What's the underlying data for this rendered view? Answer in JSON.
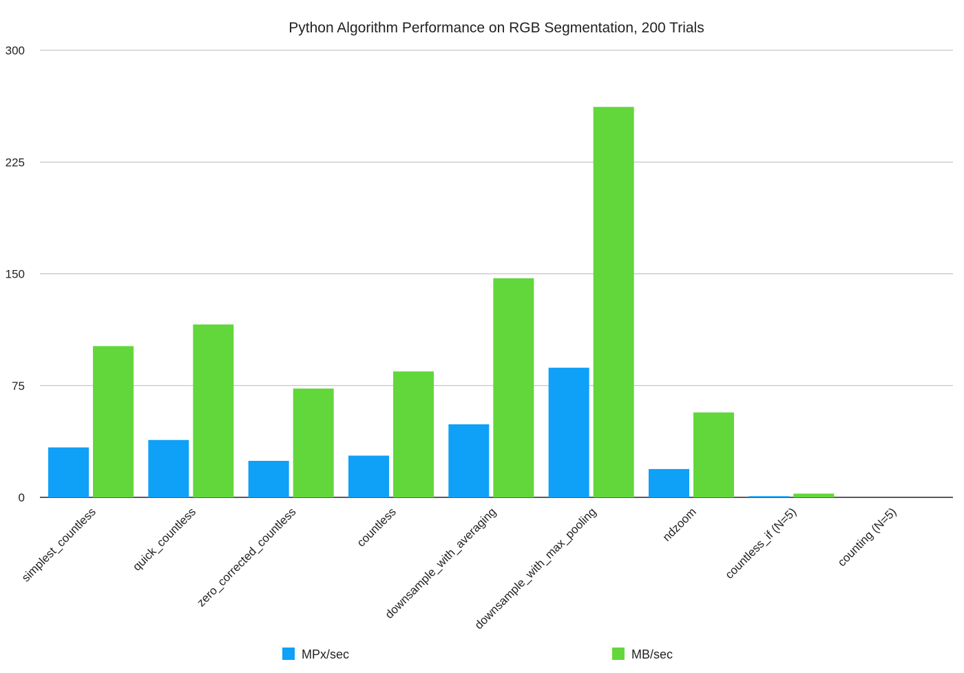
{
  "chart_data": {
    "type": "bar",
    "title": "Python Algorithm Performance on RGB Segmentation, 200 Trials",
    "xlabel": "",
    "ylabel": "",
    "ylim": [
      0,
      300
    ],
    "yticks": [
      0,
      75,
      150,
      225,
      300
    ],
    "grid": true,
    "legend_position": "bottom",
    "categories": [
      "simplest_countless",
      "quick_countless",
      "zero_corrected_countless",
      "countless",
      "downsample_with_averaging",
      "downsample_with_max_pooling",
      "ndzoom",
      "countless_if (N=5)",
      "counting (N=5)"
    ],
    "series": [
      {
        "name": "MPx/sec",
        "color": "#0fa0f8",
        "values": [
          33.5,
          38.5,
          24.5,
          28,
          49,
          87,
          19,
          0.8,
          0
        ]
      },
      {
        "name": "MB/sec",
        "color": "#62d73b",
        "values": [
          101.5,
          116,
          73,
          84.5,
          147,
          262,
          57,
          2.5,
          0
        ]
      }
    ]
  }
}
